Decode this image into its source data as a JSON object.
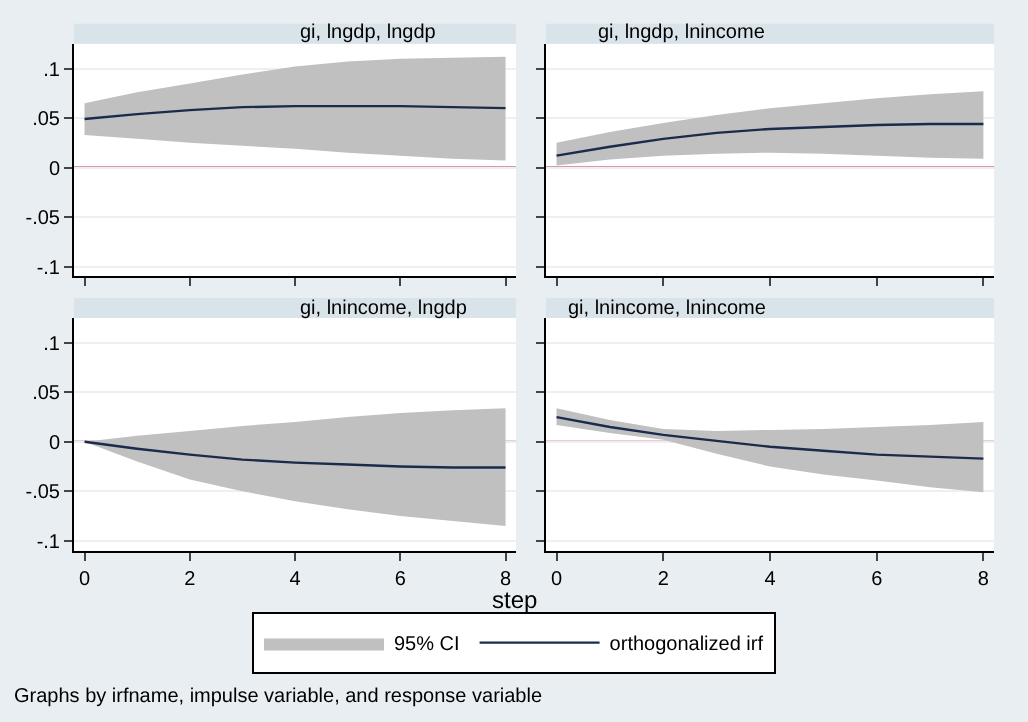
{
  "chart_data": [
    {
      "type": "line",
      "title": "gi, lngdp, lngdp",
      "x": [
        0,
        1,
        2,
        3,
        4,
        5,
        6,
        7,
        8
      ],
      "xlim": [
        -0.2,
        8.2
      ],
      "xticks": [
        0,
        2,
        4,
        6,
        8
      ],
      "ylim": [
        -0.11,
        0.125
      ],
      "yticks": [
        {
          "value": -0.1,
          "label": "-.1"
        },
        {
          "value": -0.05,
          "label": "-.05"
        },
        0,
        {
          "value": 0.05,
          "label": ".05"
        },
        {
          "value": 0.1,
          "label": ".1"
        }
      ],
      "grid": "y",
      "tick_labels": "y",
      "legend": "bottom",
      "annotations": [
        "95% CI"
      ],
      "ref_lines": [
        {
          "axis": "y",
          "value": 0,
          "color": "#c0304a"
        }
      ],
      "series": [
        {
          "name": "orthogonalized irf",
          "color": "#1a2b4c",
          "values": [
            0.049,
            0.054,
            0.058,
            0.061,
            0.062,
            0.062,
            0.062,
            0.061,
            0.06
          ],
          "lower": [
            0.033,
            0.029,
            0.025,
            0.022,
            0.019,
            0.015,
            0.012,
            0.009,
            0.007
          ],
          "upper": [
            0.065,
            0.076,
            0.085,
            0.094,
            0.102,
            0.107,
            0.11,
            0.111,
            0.112
          ]
        }
      ]
    },
    {
      "type": "line",
      "title": "gi, lngdp, lnincome",
      "x": [
        0,
        1,
        2,
        3,
        4,
        5,
        6,
        7,
        8
      ],
      "xlim": [
        -0.2,
        8.2
      ],
      "xticks": [
        0,
        2,
        4,
        6,
        8
      ],
      "ylim": [
        -0.11,
        0.125
      ],
      "yticks": [
        {
          "value": -0.1,
          "label": null
        },
        {
          "value": -0.05,
          "label": null
        },
        {
          "value": 0,
          "label": null
        },
        {
          "value": 0.05,
          "label": null
        },
        {
          "value": 0.1,
          "label": null
        }
      ],
      "grid": "y",
      "tick_labels": false,
      "ref_lines": [
        {
          "axis": "y",
          "value": 0,
          "color": "#c0304a"
        }
      ],
      "series": [
        {
          "color": "#1a2b4c",
          "values": [
            0.012,
            0.021,
            0.029,
            0.035,
            0.039,
            0.041,
            0.043,
            0.044,
            0.044
          ],
          "lower": [
            0.002,
            0.008,
            0.012,
            0.014,
            0.015,
            0.014,
            0.012,
            0.01,
            0.009
          ],
          "upper": [
            0.025,
            0.036,
            0.045,
            0.053,
            0.06,
            0.065,
            0.07,
            0.074,
            0.077
          ]
        }
      ]
    },
    {
      "type": "line",
      "title": "gi, lnincome, lngdp",
      "xlabel": "step",
      "x": [
        0,
        1,
        2,
        3,
        4,
        5,
        6,
        7,
        8
      ],
      "xlim": [
        -0.2,
        8.2
      ],
      "xticks": [
        0,
        2,
        4,
        6,
        8
      ],
      "ylim": [
        -0.11,
        0.125
      ],
      "yticks": [
        {
          "value": -0.1,
          "label": "-.1"
        },
        {
          "value": -0.05,
          "label": "-.05"
        },
        0,
        {
          "value": 0.05,
          "label": ".05"
        },
        {
          "value": 0.1,
          "label": ".1"
        }
      ],
      "grid": "y",
      "ref_lines": [
        {
          "axis": "y",
          "value": 0,
          "color": "#c0304a"
        }
      ],
      "series": [
        {
          "color": "#1a2b4c",
          "values": [
            0,
            -0.007,
            -0.013,
            -0.018,
            -0.021,
            -0.023,
            -0.025,
            -0.026,
            -0.026
          ],
          "lower": [
            0,
            -0.02,
            -0.038,
            -0.05,
            -0.06,
            -0.068,
            -0.075,
            -0.08,
            -0.085
          ],
          "upper": [
            0,
            0.006,
            0.011,
            0.016,
            0.02,
            0.025,
            0.029,
            0.032,
            0.034
          ]
        }
      ]
    },
    {
      "type": "line",
      "title": "gi, lnincome, lnincome",
      "x": [
        0,
        1,
        2,
        3,
        4,
        5,
        6,
        7,
        8
      ],
      "xlim": [
        -0.2,
        8.2
      ],
      "xticks": [
        0,
        2,
        4,
        6,
        8
      ],
      "ylim": [
        -0.11,
        0.125
      ],
      "yticks": [
        {
          "value": -0.1,
          "label": null
        },
        {
          "value": -0.05,
          "label": null
        },
        {
          "value": 0,
          "label": null
        },
        {
          "value": 0.05,
          "label": null
        },
        {
          "value": 0.1,
          "label": null
        }
      ],
      "grid": "y",
      "tick_labels": "x",
      "annotations": [
        "Graphs by irfname, impulse variable, and response variable"
      ],
      "ref_lines": [
        {
          "axis": "y",
          "value": 0,
          "color": "#c0304a"
        }
      ],
      "series": [
        {
          "color": "#1a2b4c",
          "values": [
            0.025,
            0.015,
            0.007,
            0.001,
            -0.005,
            -0.009,
            -0.013,
            -0.015,
            -0.017
          ],
          "lower": [
            0.017,
            0.009,
            0.002,
            -0.012,
            -0.025,
            -0.033,
            -0.039,
            -0.046,
            -0.051
          ],
          "upper": [
            0.034,
            0.022,
            0.013,
            0.011,
            0.012,
            0.013,
            0.015,
            0.017,
            0.02
          ]
        }
      ]
    }
  ]
}
